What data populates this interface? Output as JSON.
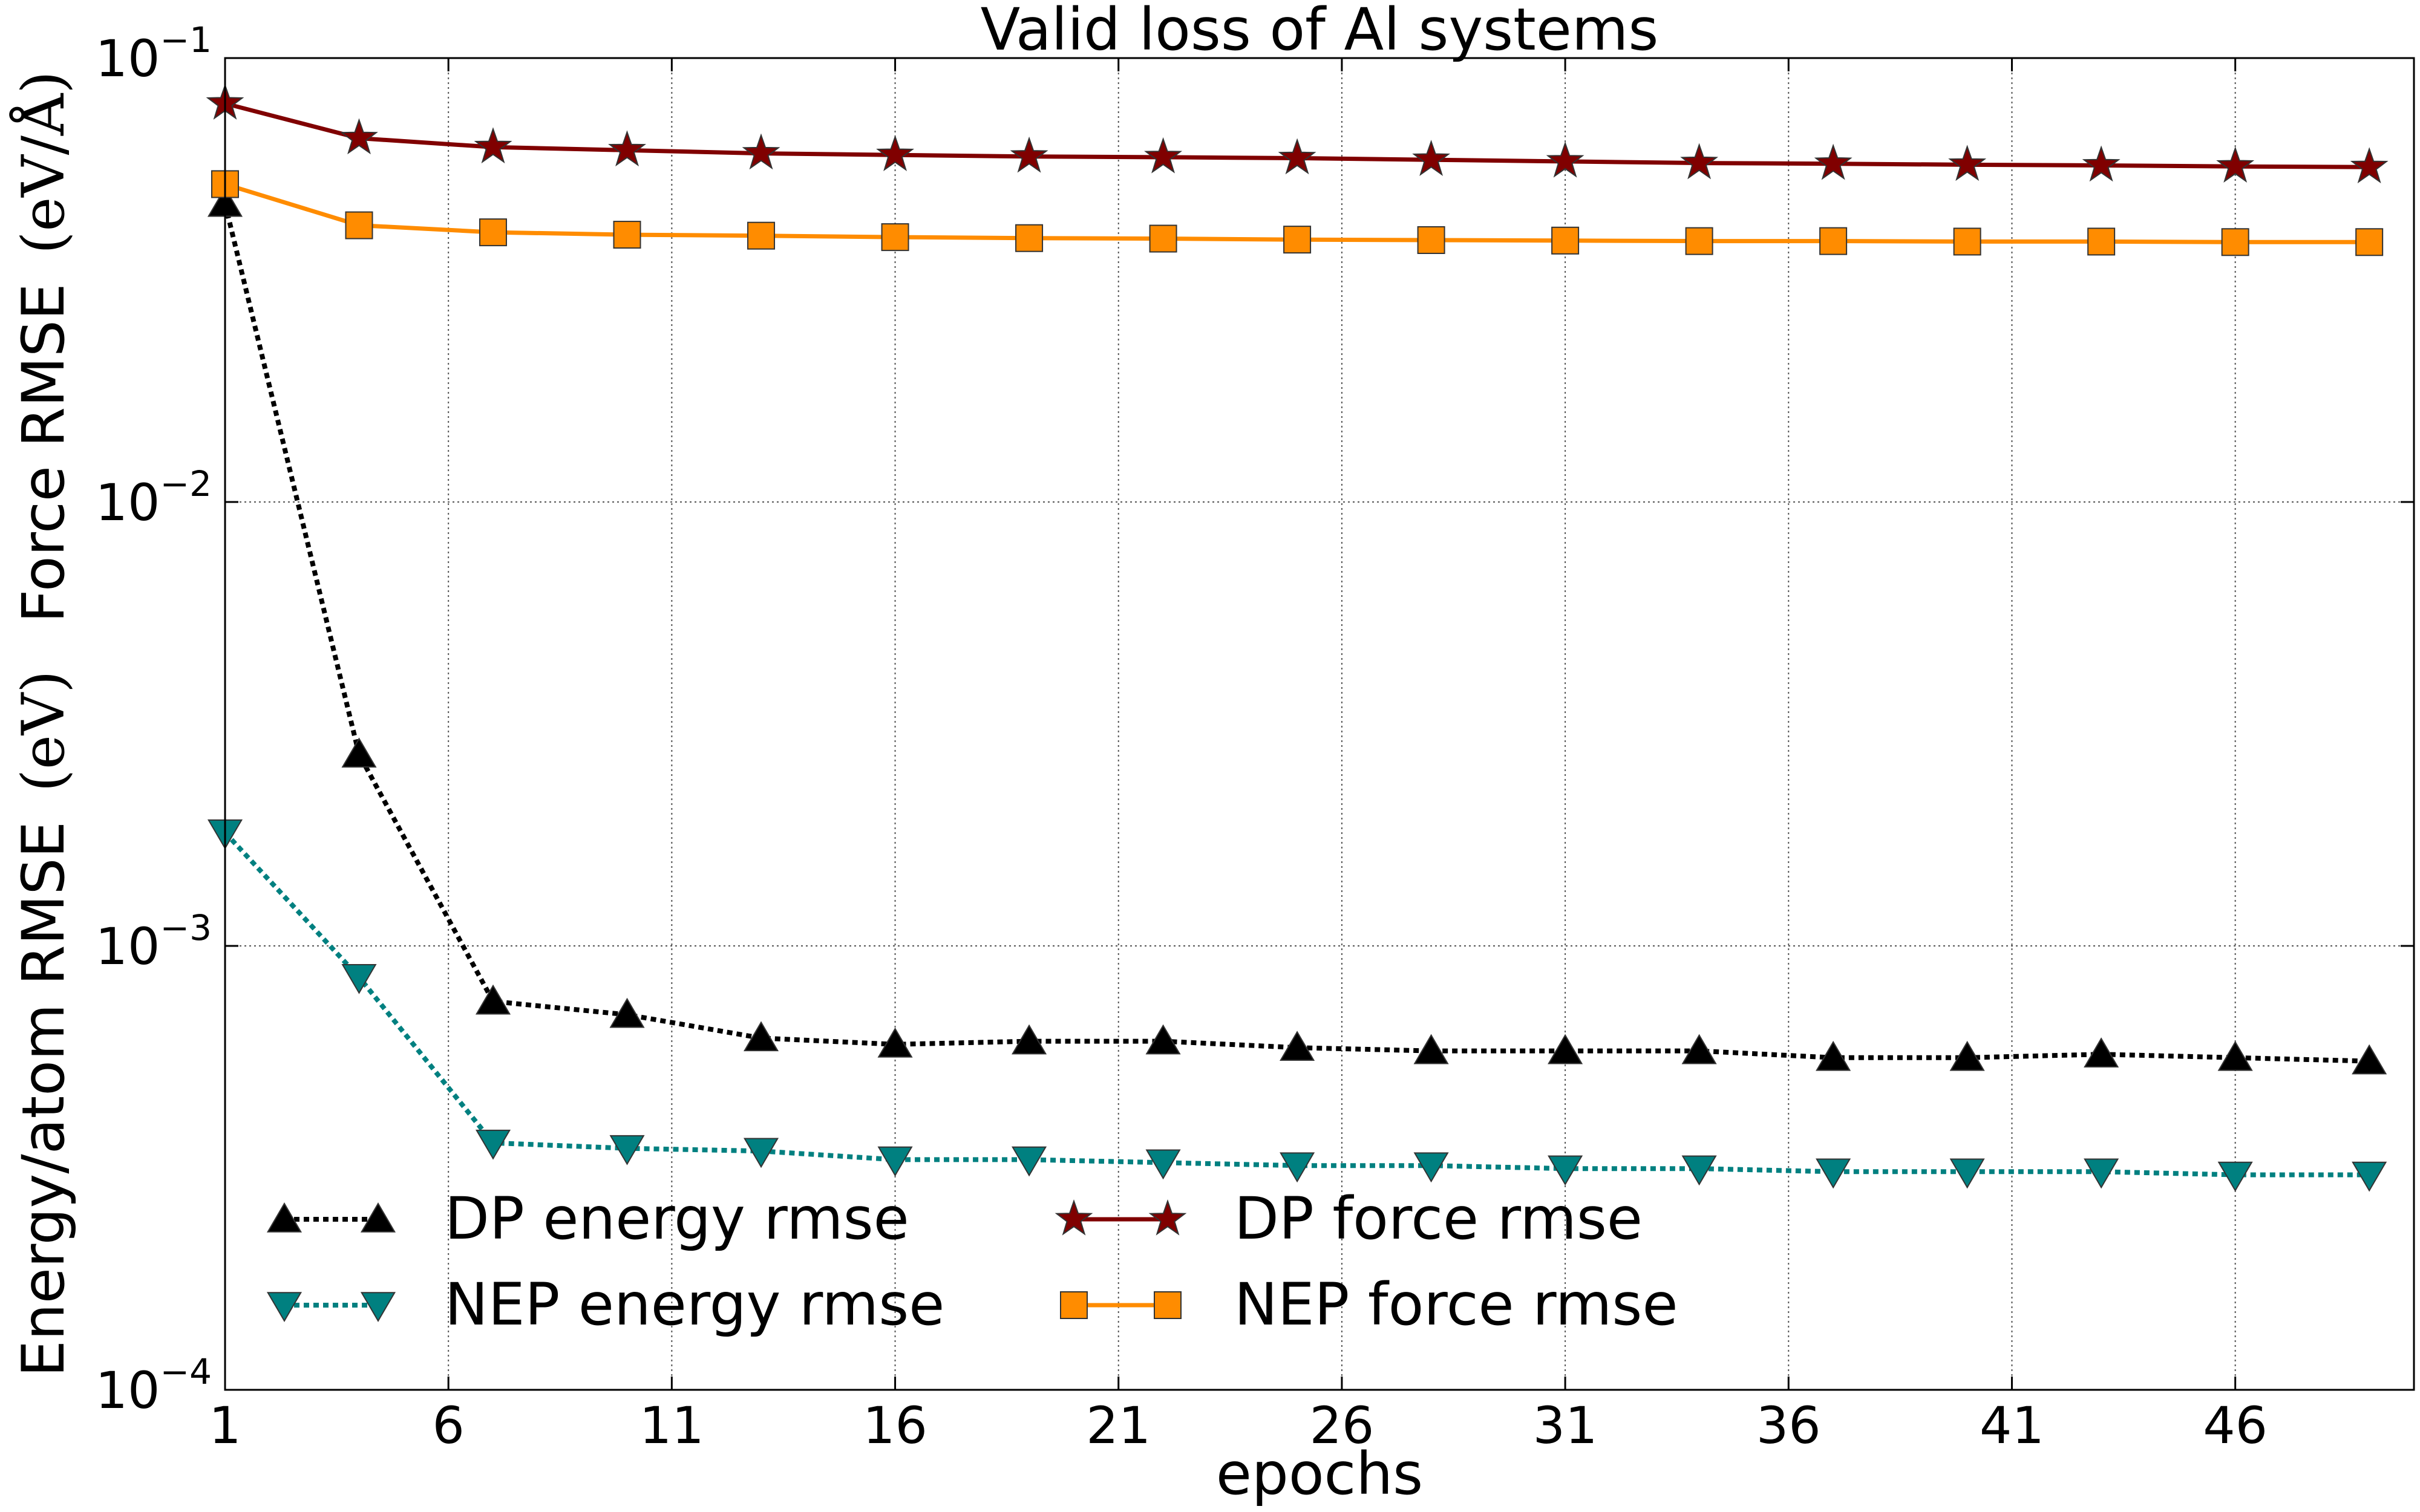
{
  "chart_data": {
    "type": "line",
    "title": "Valid loss of Al systems",
    "xlabel": "epochs",
    "ylabel": {
      "main": "Energy/atom RMSE",
      "energy_unit": "(eV)",
      "gap": "Force RMSE",
      "force_unit": "(eV/Å)"
    },
    "yscale": "log",
    "xlim": [
      1,
      50
    ],
    "ylim": [
      0.0001,
      0.1
    ],
    "x_ticks": [
      1,
      6,
      11,
      16,
      21,
      26,
      31,
      36,
      41,
      46
    ],
    "x_tick_labels": [
      "1",
      "6",
      "11",
      "16",
      "21",
      "26",
      "31",
      "36",
      "41",
      "46"
    ],
    "y_ticks": [
      {
        "value": 0.1,
        "base": "10",
        "exp": "−1"
      },
      {
        "value": 0.01,
        "base": "10",
        "exp": "−2"
      },
      {
        "value": 0.001,
        "base": "10",
        "exp": "−3"
      },
      {
        "value": 0.0001,
        "base": "10",
        "exp": "−4"
      }
    ],
    "grid": true,
    "legend_position": "lower-left",
    "legend_columns": 2,
    "x": [
      1,
      4,
      7,
      10,
      13,
      16,
      19,
      22,
      25,
      28,
      31,
      34,
      37,
      40,
      43,
      46,
      49
    ],
    "series": [
      {
        "name": "DP energy rmse",
        "color": "#000000",
        "linestyle": "dotted",
        "marker": "triangle-up",
        "values": [
          0.047,
          0.0027,
          0.00075,
          0.0007,
          0.00062,
          0.0006,
          0.00061,
          0.00061,
          0.00059,
          0.00058,
          0.00058,
          0.00058,
          0.00056,
          0.00056,
          0.00057,
          0.00056,
          0.00055
        ]
      },
      {
        "name": "NEP energy rmse",
        "color": "#008080",
        "linestyle": "dotted",
        "marker": "triangle-down",
        "values": [
          0.0018,
          0.00085,
          0.00036,
          0.00035,
          0.000345,
          0.00033,
          0.00033,
          0.000325,
          0.00032,
          0.00032,
          0.000315,
          0.000315,
          0.00031,
          0.00031,
          0.00031,
          0.000305,
          0.000305
        ]
      },
      {
        "name": "DP force rmse",
        "color": "#800000",
        "linestyle": "solid",
        "marker": "star",
        "values": [
          0.079,
          0.066,
          0.063,
          0.062,
          0.061,
          0.0605,
          0.06,
          0.0598,
          0.0595,
          0.059,
          0.0585,
          0.058,
          0.0578,
          0.0575,
          0.0573,
          0.057,
          0.0568
        ]
      },
      {
        "name": "NEP force rmse",
        "color": "#ff8c00",
        "linestyle": "solid",
        "marker": "square",
        "values": [
          0.052,
          0.042,
          0.0405,
          0.04,
          0.0398,
          0.0395,
          0.0393,
          0.0392,
          0.039,
          0.0389,
          0.0388,
          0.0387,
          0.0387,
          0.0386,
          0.0386,
          0.0385,
          0.0385
        ]
      }
    ]
  }
}
